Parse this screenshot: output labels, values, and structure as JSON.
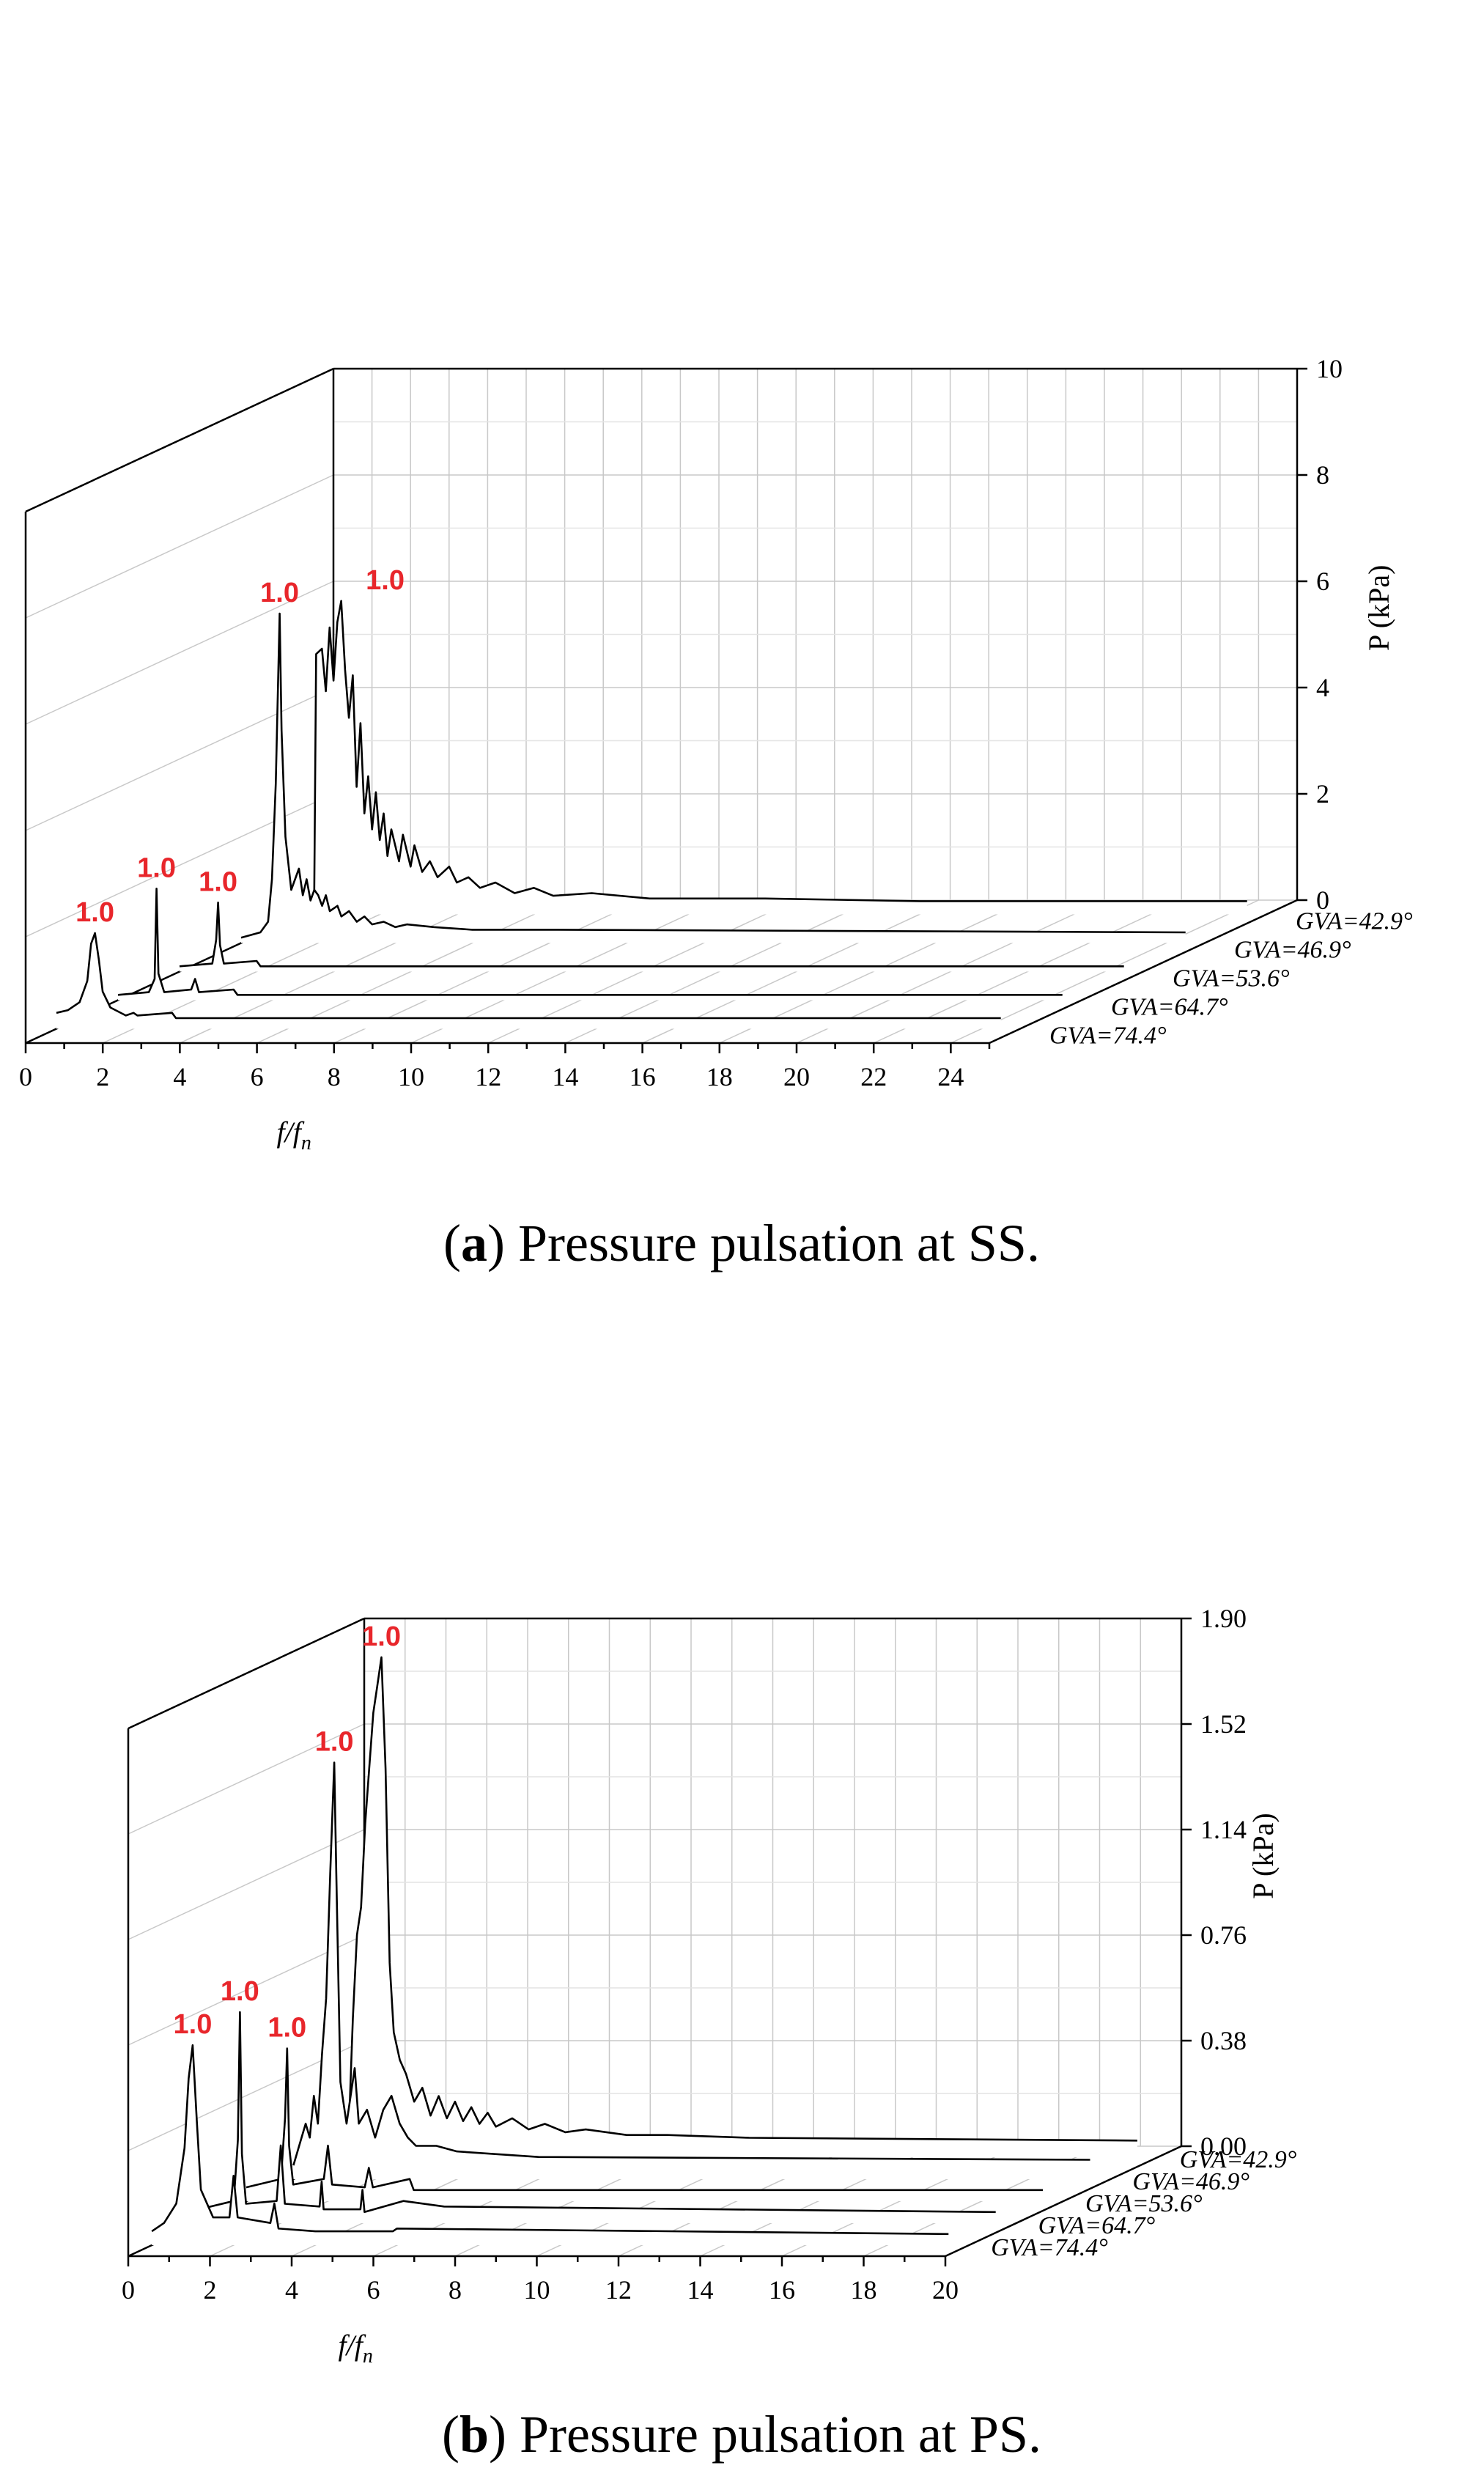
{
  "chart_data": [
    {
      "type": "line",
      "subtype": "waterfall-3d",
      "caption_letter": "a",
      "caption_text": "Pressure pulsation at SS.",
      "xlabel_main": "f",
      "xlabel_sub": "n",
      "xlabel_sep": "/f",
      "zlabel": "P (kPa)",
      "xlim": [
        0,
        25
      ],
      "xticks": [
        "0",
        "2",
        "4",
        "6",
        "8",
        "10",
        "12",
        "14",
        "16",
        "18",
        "20",
        "22",
        "24"
      ],
      "zlim": [
        0,
        10
      ],
      "zticks": [
        "0",
        "2",
        "4",
        "6",
        "8",
        "10"
      ],
      "peak_label": "1.0",
      "series": [
        {
          "name": "GVA=74.4°",
          "peak_value": 1.8,
          "points": [
            [
              0,
              0.3
            ],
            [
              0.3,
              0.35
            ],
            [
              0.6,
              0.5
            ],
            [
              0.8,
              0.9
            ],
            [
              0.9,
              1.6
            ],
            [
              1.0,
              1.8
            ],
            [
              1.1,
              1.3
            ],
            [
              1.2,
              0.7
            ],
            [
              1.4,
              0.4
            ],
            [
              1.8,
              0.25
            ],
            [
              2.0,
              0.3
            ],
            [
              2.1,
              0.25
            ],
            [
              3.0,
              0.3
            ],
            [
              3.1,
              0.2
            ],
            [
              6.0,
              0.2
            ],
            [
              24.5,
              0.2
            ]
          ]
        },
        {
          "name": "GVA=64.7°",
          "peak_value": 2.1,
          "points": [
            [
              0,
              0.1
            ],
            [
              0.8,
              0.15
            ],
            [
              0.95,
              0.4
            ],
            [
              1.0,
              2.1
            ],
            [
              1.05,
              0.5
            ],
            [
              1.2,
              0.15
            ],
            [
              1.9,
              0.2
            ],
            [
              2.0,
              0.4
            ],
            [
              2.1,
              0.15
            ],
            [
              3.0,
              0.2
            ],
            [
              3.1,
              0.1
            ],
            [
              24.5,
              0.1
            ]
          ]
        },
        {
          "name": "GVA=53.6°",
          "peak_value": 1.3,
          "points": [
            [
              0,
              0.1
            ],
            [
              0.85,
              0.15
            ],
            [
              0.95,
              0.6
            ],
            [
              1.0,
              1.3
            ],
            [
              1.05,
              0.5
            ],
            [
              1.15,
              0.15
            ],
            [
              2.0,
              0.2
            ],
            [
              2.1,
              0.1
            ],
            [
              24.5,
              0.1
            ]
          ]
        },
        {
          "name": "GVA=46.9°",
          "peak_value": 6.2,
          "points": [
            [
              0,
              0.1
            ],
            [
              0.5,
              0.2
            ],
            [
              0.7,
              0.4
            ],
            [
              0.8,
              1.2
            ],
            [
              0.9,
              3.0
            ],
            [
              1.0,
              6.2
            ],
            [
              1.05,
              4.0
            ],
            [
              1.15,
              2.0
            ],
            [
              1.3,
              1.0
            ],
            [
              1.5,
              1.4
            ],
            [
              1.6,
              0.9
            ],
            [
              1.7,
              1.2
            ],
            [
              1.8,
              0.8
            ],
            [
              1.9,
              1.0
            ],
            [
              2.0,
              0.9
            ],
            [
              2.1,
              0.7
            ],
            [
              2.2,
              0.9
            ],
            [
              2.3,
              0.6
            ],
            [
              2.5,
              0.7
            ],
            [
              2.6,
              0.5
            ],
            [
              2.8,
              0.6
            ],
            [
              3.0,
              0.4
            ],
            [
              3.2,
              0.5
            ],
            [
              3.4,
              0.35
            ],
            [
              3.7,
              0.4
            ],
            [
              4.0,
              0.3
            ],
            [
              4.3,
              0.35
            ],
            [
              5.0,
              0.3
            ],
            [
              6.0,
              0.25
            ],
            [
              8.0,
              0.25
            ],
            [
              24.5,
              0.2
            ]
          ]
        },
        {
          "name": "GVA=42.9°",
          "peak_value": 5.9,
          "points": [
            [
              0,
              0.1
            ],
            [
              0.3,
              0.4
            ],
            [
              0.35,
              4.9
            ],
            [
              0.5,
              5.0
            ],
            [
              0.6,
              4.2
            ],
            [
              0.7,
              5.4
            ],
            [
              0.8,
              4.4
            ],
            [
              0.9,
              5.5
            ],
            [
              1.0,
              5.9
            ],
            [
              1.1,
              4.6
            ],
            [
              1.2,
              3.7
            ],
            [
              1.3,
              4.5
            ],
            [
              1.4,
              2.4
            ],
            [
              1.5,
              3.6
            ],
            [
              1.6,
              1.9
            ],
            [
              1.7,
              2.6
            ],
            [
              1.8,
              1.6
            ],
            [
              1.9,
              2.3
            ],
            [
              2.0,
              1.4
            ],
            [
              2.1,
              1.9
            ],
            [
              2.2,
              1.1
            ],
            [
              2.3,
              1.6
            ],
            [
              2.5,
              1.0
            ],
            [
              2.6,
              1.5
            ],
            [
              2.8,
              0.9
            ],
            [
              2.9,
              1.3
            ],
            [
              3.1,
              0.8
            ],
            [
              3.3,
              1.0
            ],
            [
              3.5,
              0.7
            ],
            [
              3.8,
              0.9
            ],
            [
              4.0,
              0.6
            ],
            [
              4.3,
              0.7
            ],
            [
              4.6,
              0.5
            ],
            [
              5.0,
              0.6
            ],
            [
              5.5,
              0.4
            ],
            [
              6.0,
              0.5
            ],
            [
              6.5,
              0.35
            ],
            [
              7.5,
              0.4
            ],
            [
              9.0,
              0.3
            ],
            [
              12,
              0.3
            ],
            [
              16,
              0.25
            ],
            [
              24.5,
              0.25
            ]
          ]
        }
      ]
    },
    {
      "type": "line",
      "subtype": "waterfall-3d",
      "caption_letter": "b",
      "caption_text": "Pressure pulsation at PS.",
      "xlabel_main": "f",
      "xlabel_sub": "n",
      "xlabel_sep": "/f",
      "zlabel": "P (kPa)",
      "xlim": [
        0,
        20
      ],
      "xticks": [
        "0",
        "2",
        "4",
        "6",
        "8",
        "10",
        "12",
        "14",
        "16",
        "18",
        "20"
      ],
      "zlim": [
        0,
        1.9
      ],
      "zticks": [
        "0.00",
        "0.38",
        "0.76",
        "1.14",
        "1.52",
        "1.90"
      ],
      "peak_label": "1.0",
      "series": [
        {
          "name": "GVA=74.4°",
          "peak_value": 0.72,
          "points": [
            [
              0,
              0.05
            ],
            [
              0.3,
              0.08
            ],
            [
              0.6,
              0.15
            ],
            [
              0.8,
              0.35
            ],
            [
              0.9,
              0.6
            ],
            [
              1.0,
              0.72
            ],
            [
              1.1,
              0.45
            ],
            [
              1.2,
              0.2
            ],
            [
              1.5,
              0.1
            ],
            [
              1.9,
              0.1
            ],
            [
              2.0,
              0.25
            ],
            [
              2.1,
              0.1
            ],
            [
              2.9,
              0.08
            ],
            [
              3.0,
              0.15
            ],
            [
              3.1,
              0.06
            ],
            [
              4.0,
              0.05
            ],
            [
              5.9,
              0.05
            ],
            [
              6.0,
              0.06
            ],
            [
              19.5,
              0.04
            ]
          ]
        },
        {
          "name": "GVA=64.7°",
          "peak_value": 0.76,
          "points": [
            [
              0,
              0.05
            ],
            [
              0.85,
              0.08
            ],
            [
              0.95,
              0.3
            ],
            [
              1.0,
              0.76
            ],
            [
              1.05,
              0.25
            ],
            [
              1.15,
              0.07
            ],
            [
              1.9,
              0.08
            ],
            [
              2.0,
              0.28
            ],
            [
              2.1,
              0.07
            ],
            [
              2.95,
              0.06
            ],
            [
              3.0,
              0.15
            ],
            [
              3.05,
              0.05
            ],
            [
              3.95,
              0.05
            ],
            [
              4.0,
              0.12
            ],
            [
              4.05,
              0.04
            ],
            [
              5,
              0.08
            ],
            [
              6,
              0.06
            ],
            [
              19.5,
              0.04
            ]
          ]
        },
        {
          "name": "GVA=53.6°",
          "peak_value": 0.55,
          "points": [
            [
              0,
              0.05
            ],
            [
              0.85,
              0.08
            ],
            [
              0.95,
              0.3
            ],
            [
              1.0,
              0.55
            ],
            [
              1.05,
              0.2
            ],
            [
              1.15,
              0.06
            ],
            [
              1.9,
              0.08
            ],
            [
              2.0,
              0.2
            ],
            [
              2.1,
              0.06
            ],
            [
              2.9,
              0.05
            ],
            [
              3.0,
              0.12
            ],
            [
              3.1,
              0.05
            ],
            [
              4.0,
              0.08
            ],
            [
              4.1,
              0.04
            ],
            [
              19.5,
              0.04
            ]
          ]
        },
        {
          "name": "GVA=46.9°",
          "peak_value": 1.5,
          "points": [
            [
              0,
              0.05
            ],
            [
              0.3,
              0.2
            ],
            [
              0.4,
              0.15
            ],
            [
              0.5,
              0.3
            ],
            [
              0.6,
              0.2
            ],
            [
              0.7,
              0.45
            ],
            [
              0.8,
              0.65
            ],
            [
              0.9,
              1.1
            ],
            [
              1.0,
              1.5
            ],
            [
              1.05,
              1.1
            ],
            [
              1.15,
              0.35
            ],
            [
              1.3,
              0.2
            ],
            [
              1.5,
              0.4
            ],
            [
              1.6,
              0.2
            ],
            [
              1.8,
              0.25
            ],
            [
              2.0,
              0.15
            ],
            [
              2.2,
              0.25
            ],
            [
              2.4,
              0.3
            ],
            [
              2.6,
              0.2
            ],
            [
              2.8,
              0.15
            ],
            [
              3.0,
              0.12
            ],
            [
              3.5,
              0.12
            ],
            [
              4.0,
              0.1
            ],
            [
              6.0,
              0.08
            ],
            [
              19.5,
              0.07
            ]
          ]
        },
        {
          "name": "GVA=42.9°",
          "peak_value": 1.8,
          "points": [
            [
              0,
              0.05
            ],
            [
              0.2,
              0.1
            ],
            [
              0.3,
              0.5
            ],
            [
              0.4,
              0.8
            ],
            [
              0.5,
              0.9
            ],
            [
              0.6,
              1.2
            ],
            [
              0.7,
              1.4
            ],
            [
              0.8,
              1.6
            ],
            [
              0.9,
              1.7
            ],
            [
              1.0,
              1.8
            ],
            [
              1.1,
              1.4
            ],
            [
              1.2,
              0.7
            ],
            [
              1.3,
              0.45
            ],
            [
              1.45,
              0.35
            ],
            [
              1.6,
              0.3
            ],
            [
              1.8,
              0.2
            ],
            [
              2.0,
              0.25
            ],
            [
              2.2,
              0.15
            ],
            [
              2.4,
              0.22
            ],
            [
              2.6,
              0.14
            ],
            [
              2.8,
              0.2
            ],
            [
              3.0,
              0.13
            ],
            [
              3.2,
              0.18
            ],
            [
              3.4,
              0.12
            ],
            [
              3.6,
              0.16
            ],
            [
              3.8,
              0.11
            ],
            [
              4.2,
              0.14
            ],
            [
              4.6,
              0.1
            ],
            [
              5.0,
              0.12
            ],
            [
              5.5,
              0.09
            ],
            [
              6.0,
              0.1
            ],
            [
              7,
              0.08
            ],
            [
              8,
              0.08
            ],
            [
              10,
              0.07
            ],
            [
              19.5,
              0.06
            ]
          ]
        }
      ]
    }
  ]
}
